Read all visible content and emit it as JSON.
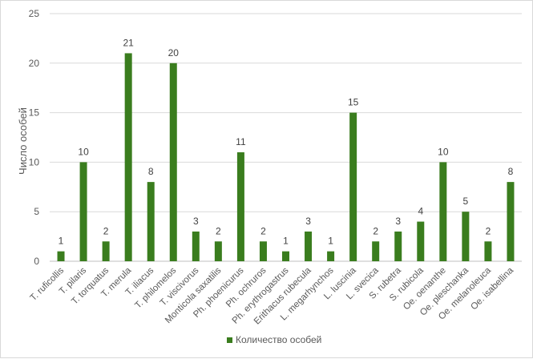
{
  "chart_data": {
    "type": "bar",
    "title": "",
    "xlabel": "",
    "ylabel": "Число особей",
    "ylim": [
      0,
      25
    ],
    "yticks": [
      0,
      5,
      10,
      15,
      20,
      25
    ],
    "grid": true,
    "legend_position": "bottom",
    "bar_color": "#3a7d1e",
    "categories": [
      "T. ruficollis",
      "T. pilaris",
      "T. torquatus",
      "T. merula",
      "T. iliacus",
      "T. philomelos",
      "T. viscivorus",
      "Monticola saxatilis",
      "Ph. phoenicurus",
      "Ph. ochruros",
      "Ph. erythrogastrus",
      "Erithacus rubecula",
      "L. megarhynchos",
      "L. luscinia",
      "L. svecica",
      "S. rubetra",
      "S. rubicola",
      "Oe. oenanthe",
      "Oe. pleschanka",
      "Oe. melanoleuca",
      "Oe. isabellina"
    ],
    "series": [
      {
        "name": "Количество особей",
        "values": [
          1,
          10,
          2,
          21,
          8,
          20,
          3,
          2,
          11,
          2,
          1,
          3,
          1,
          15,
          2,
          3,
          4,
          10,
          5,
          2,
          8
        ]
      }
    ]
  }
}
